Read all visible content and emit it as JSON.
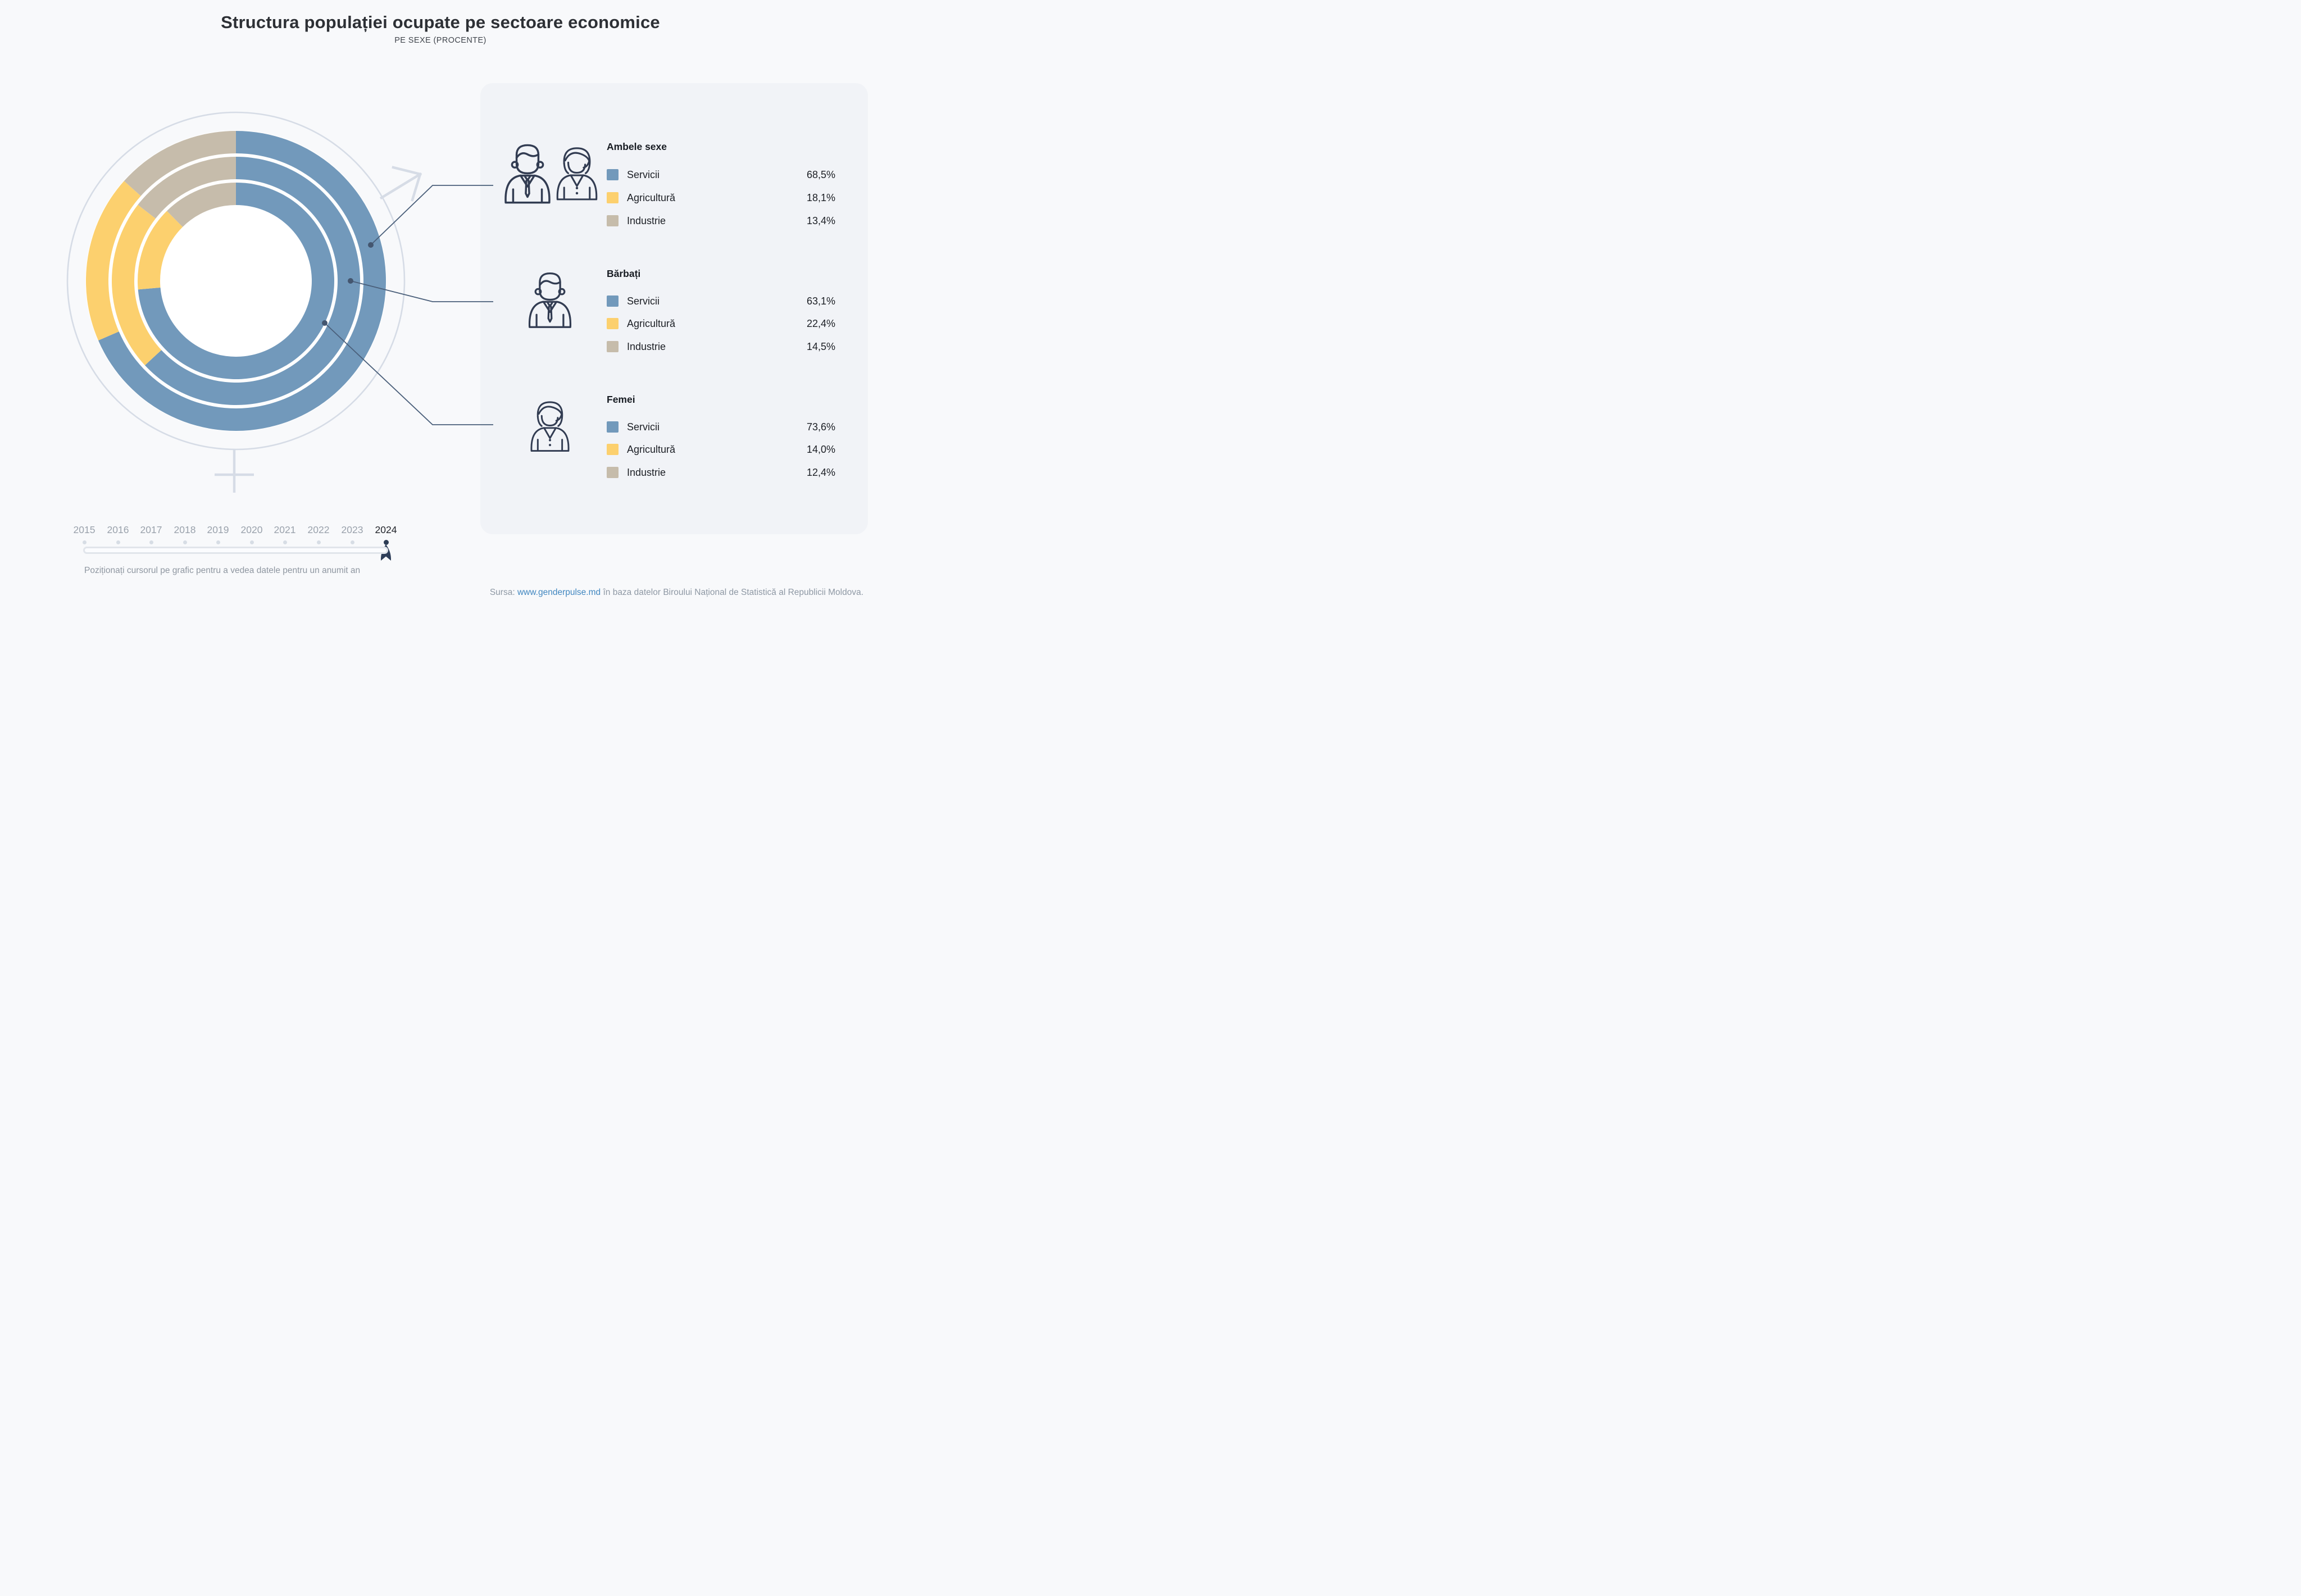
{
  "header": {
    "title": "Structura populației ocupate pe sectoare economice",
    "subtitle": "PE SEXE (PROCENTE)"
  },
  "panel": {
    "sections": [
      {
        "title": "Ambele sexe",
        "icon": "man-woman",
        "rows": [
          {
            "sector": "Servicii",
            "value": "68,5%",
            "color": "#7299bb"
          },
          {
            "sector": "Agricultură",
            "value": "18,1%",
            "color": "#fcd06e"
          },
          {
            "sector": "Industrie",
            "value": "13,4%",
            "color": "#c6bcab"
          }
        ]
      },
      {
        "title": "Bărbați",
        "icon": "man",
        "rows": [
          {
            "sector": "Servicii",
            "value": "63,1%",
            "color": "#7299bb"
          },
          {
            "sector": "Agricultură",
            "value": "22,4%",
            "color": "#fcd06e"
          },
          {
            "sector": "Industrie",
            "value": "14,5%",
            "color": "#c6bcab"
          }
        ]
      },
      {
        "title": "Femei",
        "icon": "woman",
        "rows": [
          {
            "sector": "Servicii",
            "value": "73,6%",
            "color": "#7299bb"
          },
          {
            "sector": "Agricultură",
            "value": "14,0%",
            "color": "#fcd06e"
          },
          {
            "sector": "Industrie",
            "value": "12,4%",
            "color": "#c6bcab"
          }
        ]
      }
    ]
  },
  "slider": {
    "years": [
      "2015",
      "2016",
      "2017",
      "2018",
      "2019",
      "2020",
      "2021",
      "2022",
      "2023",
      "2024"
    ],
    "selected_year": "2024",
    "hint": "Poziționați cursorul pe grafic pentru a vedea datele pentru un anumit an"
  },
  "source": {
    "prefix": "Sursa: ",
    "link": "www.genderpulse.md",
    "suffix": " în baza datelor Biroului Național de Statistică al Republicii Moldova."
  },
  "chart_data": {
    "type": "donut-multi-ring",
    "title": "Structura populației ocupate pe sectoare economice",
    "subtitle": "PE SEXE (PROCENTE)",
    "unit": "%",
    "year_shown": "2024",
    "sectors": [
      "Servicii",
      "Agricultură",
      "Industrie"
    ],
    "colors": {
      "Servicii": "#7299bb",
      "Agricultură": "#fcd06e",
      "Industrie": "#c6bcab"
    },
    "rings": [
      {
        "name": "Ambele sexe",
        "position": "outer",
        "values": {
          "Servicii": 68.5,
          "Agricultură": 18.1,
          "Industrie": 13.4
        }
      },
      {
        "name": "Bărbați",
        "position": "middle",
        "values": {
          "Servicii": 63.1,
          "Agricultură": 22.4,
          "Industrie": 14.5
        }
      },
      {
        "name": "Femei",
        "position": "inner",
        "values": {
          "Servicii": 73.6,
          "Agricultură": 14.0,
          "Industrie": 12.4
        }
      }
    ],
    "x_axis_years": [
      "2015",
      "2016",
      "2017",
      "2018",
      "2019",
      "2020",
      "2021",
      "2022",
      "2023",
      "2024"
    ],
    "start_angle_deg": 0,
    "direction": "clockwise",
    "legend_position": "right"
  }
}
